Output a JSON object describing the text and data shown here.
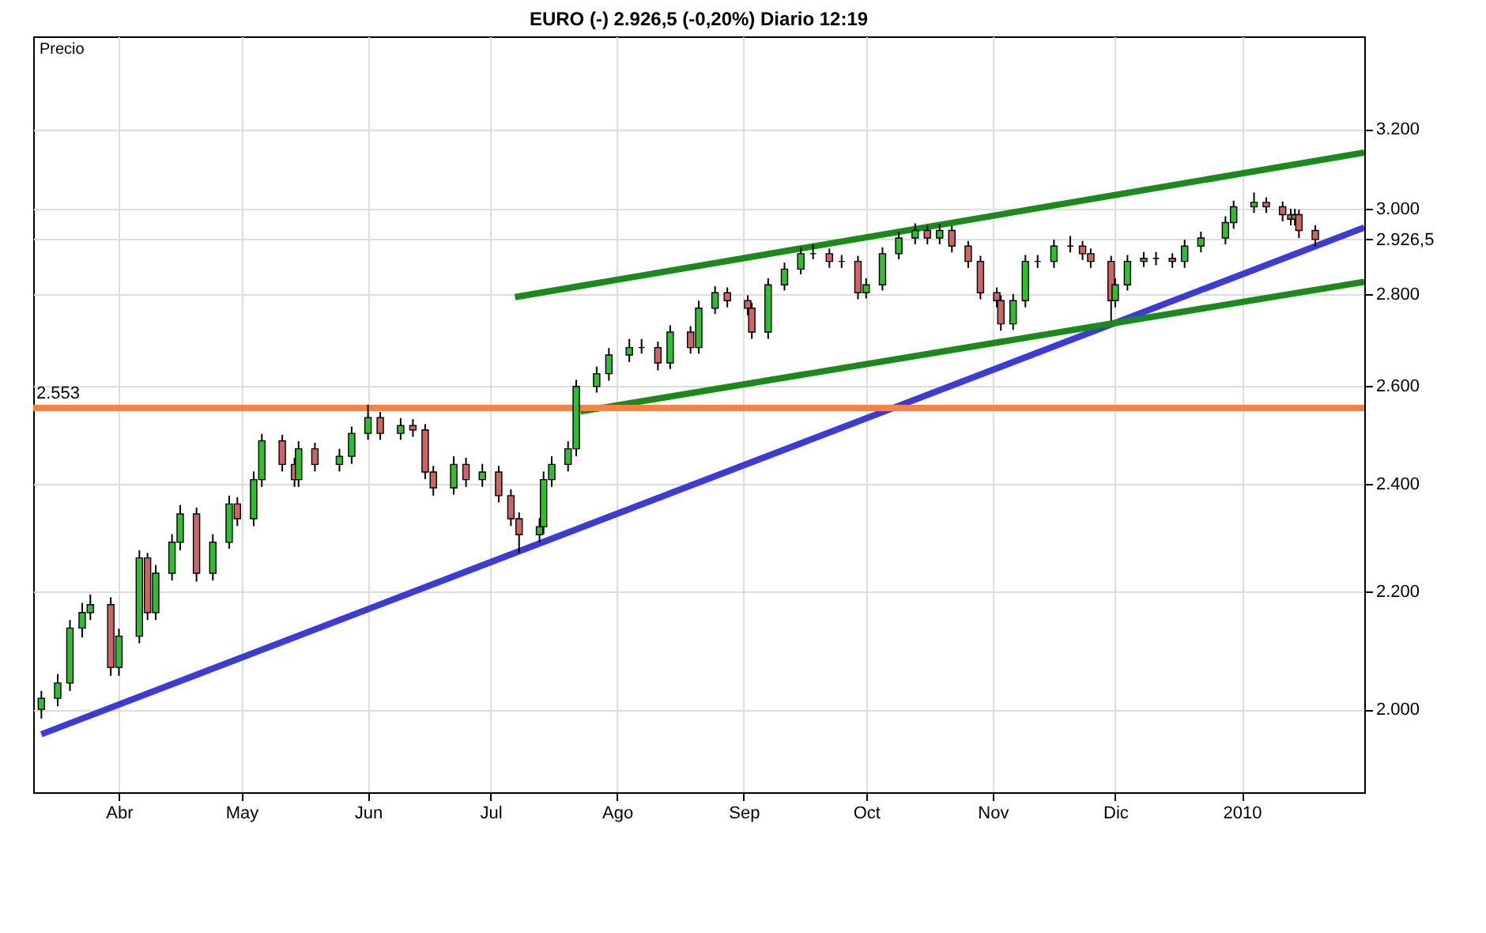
{
  "chart_data": {
    "type": "candlestick",
    "title": "EURO (-) 2.926,5 (-0,20%) Diario 12:19",
    "ylabel": "Precio",
    "log": true,
    "grid": true,
    "xlim": [
      "2009-03-11",
      "2010-01-31"
    ],
    "xticks": [
      {
        "value": "2009-04-01",
        "label": "Abr"
      },
      {
        "value": "2009-05-01",
        "label": "May"
      },
      {
        "value": "2009-06-01",
        "label": "Jun"
      },
      {
        "value": "2009-07-01",
        "label": "Jul"
      },
      {
        "value": "2009-08-01",
        "label": "Ago"
      },
      {
        "value": "2009-09-01",
        "label": "Sep"
      },
      {
        "value": "2009-10-01",
        "label": "Oct"
      },
      {
        "value": "2009-11-01",
        "label": "Nov"
      },
      {
        "value": "2009-12-01",
        "label": "Dic"
      },
      {
        "value": "2010-01-01",
        "label": "2010"
      }
    ],
    "ylim": [
      1870,
      3450
    ],
    "yticks": [
      {
        "value": 2000,
        "label": "2.000"
      },
      {
        "value": 2200,
        "label": "2.200"
      },
      {
        "value": 2400,
        "label": "2.400"
      },
      {
        "value": 2600,
        "label": "2.600"
      },
      {
        "value": 2800,
        "label": "2.800"
      },
      {
        "value": 2926.5,
        "label": "2.926,5"
      },
      {
        "value": 3000,
        "label": "3.000"
      },
      {
        "value": 3200,
        "label": "3.200"
      }
    ],
    "x": [
      "2009-03-13",
      "2009-03-17",
      "2009-03-20",
      "2009-03-23",
      "2009-03-25",
      "2009-03-30",
      "2009-04-01",
      "2009-04-06",
      "2009-04-08",
      "2009-04-10",
      "2009-04-14",
      "2009-04-16",
      "2009-04-20",
      "2009-04-24",
      "2009-04-28",
      "2009-04-30",
      "2009-05-04",
      "2009-05-06",
      "2009-05-11",
      "2009-05-14",
      "2009-05-15",
      "2009-05-19",
      "2009-05-25",
      "2009-05-28",
      "2009-06-01",
      "2009-06-04",
      "2009-06-09",
      "2009-06-12",
      "2009-06-15",
      "2009-06-17",
      "2009-06-22",
      "2009-06-25",
      "2009-06-29",
      "2009-07-03",
      "2009-07-06",
      "2009-07-08",
      "2009-07-13",
      "2009-07-14",
      "2009-07-16",
      "2009-07-20",
      "2009-07-22",
      "2009-07-27",
      "2009-07-30",
      "2009-08-04",
      "2009-08-07",
      "2009-08-11",
      "2009-08-14",
      "2009-08-19",
      "2009-08-21",
      "2009-08-25",
      "2009-08-28",
      "2009-09-02",
      "2009-09-03",
      "2009-09-07",
      "2009-09-11",
      "2009-09-15",
      "2009-09-18",
      "2009-09-22",
      "2009-09-25",
      "2009-09-29",
      "2009-10-01",
      "2009-10-05",
      "2009-10-09",
      "2009-10-13",
      "2009-10-16",
      "2009-10-19",
      "2009-10-22",
      "2009-10-26",
      "2009-10-29",
      "2009-11-02",
      "2009-11-03",
      "2009-11-06",
      "2009-11-09",
      "2009-11-12",
      "2009-11-16",
      "2009-11-20",
      "2009-11-23",
      "2009-11-25",
      "2009-11-30",
      "2009-12-01",
      "2009-12-04",
      "2009-12-08",
      "2009-12-11",
      "2009-12-15",
      "2009-12-18",
      "2009-12-22",
      "2009-12-28",
      "2009-12-30",
      "2010-01-04",
      "2010-01-07",
      "2010-01-11",
      "2010-01-13",
      "2010-01-14",
      "2010-01-15",
      "2010-01-19"
    ],
    "ohlc": [
      [
        2000,
        2030,
        1985,
        2018
      ],
      [
        2018,
        2058,
        2005,
        2043
      ],
      [
        2043,
        2150,
        2030,
        2136
      ],
      [
        2136,
        2180,
        2120,
        2163
      ],
      [
        2163,
        2195,
        2150,
        2177
      ],
      [
        2177,
        2190,
        2055,
        2069
      ],
      [
        2069,
        2135,
        2055,
        2122
      ],
      [
        2122,
        2275,
        2110,
        2261
      ],
      [
        2261,
        2270,
        2150,
        2163
      ],
      [
        2163,
        2248,
        2150,
        2233
      ],
      [
        2233,
        2305,
        2220,
        2290
      ],
      [
        2290,
        2360,
        2275,
        2343
      ],
      [
        2343,
        2355,
        2218,
        2233
      ],
      [
        2233,
        2305,
        2220,
        2290
      ],
      [
        2290,
        2378,
        2278,
        2362
      ],
      [
        2362,
        2375,
        2320,
        2334
      ],
      [
        2334,
        2425,
        2320,
        2409
      ],
      [
        2409,
        2500,
        2395,
        2486
      ],
      [
        2486,
        2498,
        2425,
        2439
      ],
      [
        2439,
        2452,
        2395,
        2409
      ],
      [
        2409,
        2485,
        2395,
        2470
      ],
      [
        2470,
        2482,
        2425,
        2439
      ],
      [
        2439,
        2470,
        2425,
        2455
      ],
      [
        2455,
        2515,
        2440,
        2501
      ],
      [
        2501,
        2560,
        2488,
        2533
      ],
      [
        2533,
        2545,
        2488,
        2501
      ],
      [
        2501,
        2532,
        2488,
        2517
      ],
      [
        2517,
        2530,
        2494,
        2508
      ],
      [
        2508,
        2520,
        2410,
        2424
      ],
      [
        2424,
        2436,
        2378,
        2393
      ],
      [
        2393,
        2455,
        2380,
        2439
      ],
      [
        2439,
        2452,
        2395,
        2409
      ],
      [
        2409,
        2440,
        2395,
        2424
      ],
      [
        2424,
        2436,
        2365,
        2378
      ],
      [
        2378,
        2390,
        2320,
        2334
      ],
      [
        2334,
        2346,
        2270,
        2304
      ],
      [
        2304,
        2335,
        2290,
        2319
      ],
      [
        2319,
        2425,
        2305,
        2409
      ],
      [
        2409,
        2455,
        2395,
        2439
      ],
      [
        2439,
        2485,
        2425,
        2470
      ],
      [
        2470,
        2612,
        2455,
        2598
      ],
      [
        2598,
        2640,
        2585,
        2625
      ],
      [
        2625,
        2680,
        2610,
        2665
      ],
      [
        2665,
        2700,
        2650,
        2681
      ],
      [
        2681,
        2700,
        2668,
        2681
      ],
      [
        2681,
        2694,
        2632,
        2648
      ],
      [
        2648,
        2730,
        2635,
        2715
      ],
      [
        2715,
        2728,
        2668,
        2681
      ],
      [
        2681,
        2785,
        2668,
        2768
      ],
      [
        2768,
        2818,
        2755,
        2803
      ],
      [
        2803,
        2815,
        2770,
        2785
      ],
      [
        2785,
        2797,
        2752,
        2768
      ],
      [
        2768,
        2780,
        2700,
        2715
      ],
      [
        2715,
        2836,
        2700,
        2821
      ],
      [
        2821,
        2872,
        2808,
        2857
      ],
      [
        2857,
        2908,
        2845,
        2893
      ],
      [
        2893,
        2915,
        2880,
        2893
      ],
      [
        2893,
        2905,
        2860,
        2875
      ],
      [
        2875,
        2890,
        2860,
        2875
      ],
      [
        2875,
        2888,
        2788,
        2803
      ],
      [
        2803,
        2836,
        2790,
        2821
      ],
      [
        2821,
        2908,
        2808,
        2893
      ],
      [
        2893,
        2945,
        2880,
        2930
      ],
      [
        2930,
        2965,
        2915,
        2948
      ],
      [
        2948,
        2960,
        2915,
        2930
      ],
      [
        2930,
        2963,
        2915,
        2948
      ],
      [
        2948,
        2960,
        2896,
        2911
      ],
      [
        2911,
        2923,
        2860,
        2875
      ],
      [
        2875,
        2888,
        2788,
        2803
      ],
      [
        2803,
        2815,
        2770,
        2785
      ],
      [
        2785,
        2797,
        2718,
        2733
      ],
      [
        2733,
        2800,
        2720,
        2785
      ],
      [
        2785,
        2890,
        2770,
        2875
      ],
      [
        2875,
        2890,
        2860,
        2875
      ],
      [
        2875,
        2926,
        2860,
        2911
      ],
      [
        2911,
        2935,
        2896,
        2911
      ],
      [
        2911,
        2923,
        2878,
        2893
      ],
      [
        2893,
        2905,
        2860,
        2875
      ],
      [
        2875,
        2888,
        2740,
        2785
      ],
      [
        2785,
        2836,
        2770,
        2821
      ],
      [
        2821,
        2890,
        2808,
        2875
      ],
      [
        2875,
        2897,
        2862,
        2882
      ],
      [
        2882,
        2897,
        2866,
        2882
      ],
      [
        2882,
        2894,
        2860,
        2875
      ],
      [
        2875,
        2926,
        2860,
        2911
      ],
      [
        2911,
        2945,
        2896,
        2930
      ],
      [
        2930,
        2982,
        2915,
        2967
      ],
      [
        2967,
        3020,
        2952,
        3005
      ],
      [
        3005,
        3040,
        2990,
        3016
      ],
      [
        3016,
        3028,
        2990,
        3005
      ],
      [
        3005,
        3018,
        2970,
        2986
      ],
      [
        2986,
        3000,
        2960,
        2975
      ],
      [
        2975,
        3000,
        2960,
        2986
      ],
      [
        2986,
        2998,
        2930,
        2948
      ],
      [
        2948,
        2960,
        2910,
        2926.5
      ]
    ],
    "series": [
      {
        "type": "line",
        "color": "#3b3bdc",
        "x": [
          "2009-03-13",
          "2010-01-31"
        ],
        "values": [
          1960,
          2955
        ]
      },
      {
        "type": "line",
        "color": "#1a8a1a",
        "x": [
          "2009-07-07",
          "2010-01-31"
        ],
        "values": [
          2793,
          3140
        ]
      },
      {
        "type": "line",
        "color": "#1a8a1a",
        "x": [
          "2009-07-23",
          "2010-01-31"
        ],
        "values": [
          2546,
          2828
        ]
      }
    ],
    "ref_lines": [
      {
        "axis": "y",
        "value": 2553,
        "label": "2.553",
        "color": "#ff7f3f"
      }
    ]
  }
}
